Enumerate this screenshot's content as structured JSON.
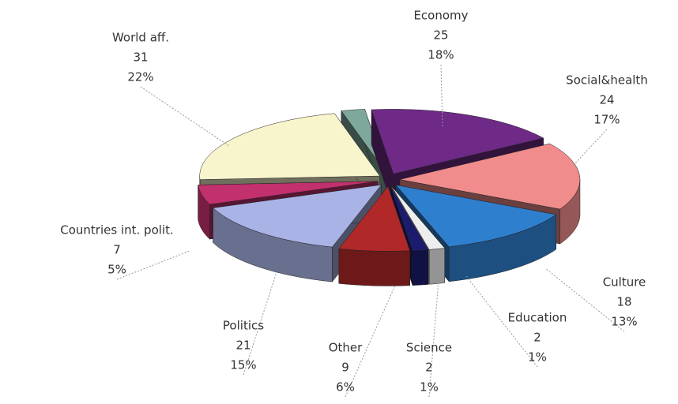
{
  "chart_data": {
    "type": "pie3d",
    "categories": [
      "Economy",
      "Social&health",
      "Culture",
      "Education",
      "Science",
      "Other",
      "Politics",
      "Countries int. polit.",
      "World aff.",
      null
    ],
    "values": [
      25,
      24,
      18,
      2,
      2,
      9,
      21,
      7,
      31,
      3
    ],
    "percent_labels": [
      "18%",
      "17%",
      "13%",
      "1%",
      "1%",
      "6%",
      "15%",
      "5%",
      "22%",
      null
    ],
    "colors": [
      "#6e2a86",
      "#f08c8c",
      "#2f7fcf",
      "#eeeeee",
      "#1c1c6e",
      "#b02828",
      "#a9b3e6",
      "#c2306e",
      "#f8f4cc",
      "#7ea89c"
    ]
  }
}
